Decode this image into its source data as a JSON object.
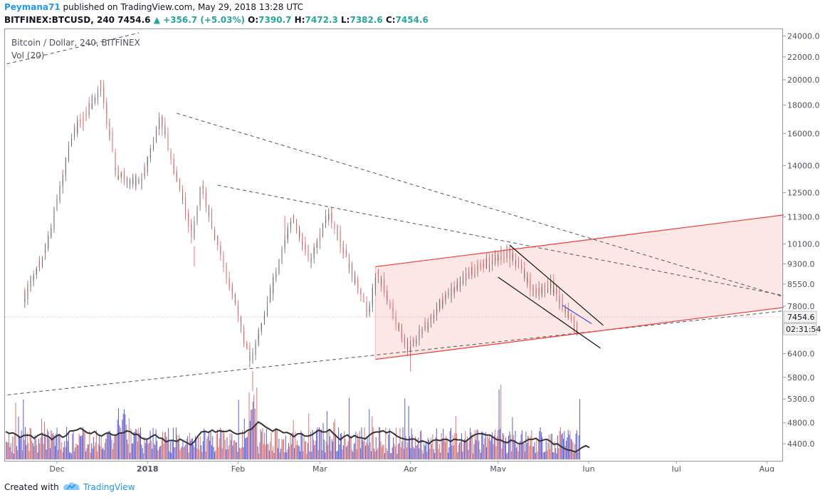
{
  "header": {
    "author": "Peymana71",
    "published": "published on TradingView.com, May 29, 2018 13:28 UTC",
    "symbol": "BITFINEX:BTCUSD, 240",
    "last": "7454.6",
    "change": "+356.7 (+5.03%)",
    "o_label": "O:",
    "o_val": "7390.7",
    "h_label": "H:",
    "h_val": "7472.3",
    "l_label": "L:",
    "l_val": "7382.6",
    "c_label": "C:",
    "c_val": "7454.6"
  },
  "legend": {
    "title": "Bitcoin / Dollar, 240, BITFINEX",
    "volume": "Vol (20)"
  },
  "footer": {
    "created_with": "Created with",
    "brand": "TradingView"
  },
  "colors": {
    "up": "#26a69a",
    "candle_up": "#6a6a6a",
    "candle_down": "#e06666",
    "vol_blue": "#3f3fd0",
    "vol_red": "#d05a5a",
    "channel": "#ef3b3b",
    "channel_fill": "#fde6e6"
  },
  "chart_data": {
    "type": "candlestick",
    "log_scale": true,
    "y_ticks": [
      "24000.0",
      "22000.0",
      "20000.0",
      "18000.0",
      "16000.0",
      "14000.0",
      "12500.0",
      "11300.0",
      "10100.0",
      "9300.0",
      "8550.0",
      "7800.0",
      "6400.0",
      "5800.0",
      "5300.0",
      "4800.0",
      "4400.0"
    ],
    "x_ticks": [
      "Dec",
      "2018",
      "Feb",
      "Mar",
      "Apr",
      "May",
      "Jun",
      "Jul",
      "Aug"
    ],
    "last_price": "7454.6",
    "countdown": "02:31:54",
    "close_path": [
      [
        "2017-11-20",
        8000
      ],
      [
        "2017-11-28",
        9900
      ],
      [
        "2017-12-07",
        16000
      ],
      [
        "2017-12-17",
        19600
      ],
      [
        "2017-12-22",
        13500
      ],
      [
        "2017-12-30",
        13000
      ],
      [
        "2018-01-06",
        17000
      ],
      [
        "2018-01-17",
        10500
      ],
      [
        "2018-01-20",
        12800
      ],
      [
        "2018-02-06",
        6200
      ],
      [
        "2018-02-20",
        11200
      ],
      [
        "2018-02-26",
        9500
      ],
      [
        "2018-03-05",
        11500
      ],
      [
        "2018-03-18",
        7500
      ],
      [
        "2018-03-21",
        9000
      ],
      [
        "2018-04-01",
        6500
      ],
      [
        "2018-04-12",
        7900
      ],
      [
        "2018-04-22",
        9000
      ],
      [
        "2018-05-05",
        9800
      ],
      [
        "2018-05-14",
        8300
      ],
      [
        "2018-05-20",
        8500
      ],
      [
        "2018-05-28",
        7100
      ],
      [
        "2018-05-29",
        7454.6
      ]
    ]
  }
}
